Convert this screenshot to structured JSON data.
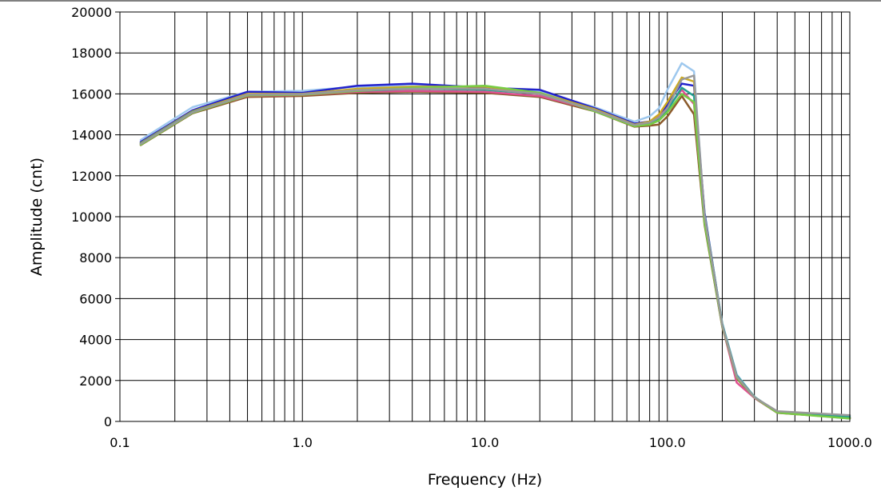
{
  "chart_data": {
    "type": "line",
    "title": "",
    "xlabel": "Frequency (Hz)",
    "ylabel": "Amplitude (cnt)",
    "x_scale": "log",
    "xlim": [
      0.1,
      1000
    ],
    "ylim": [
      0,
      20000
    ],
    "grid": true,
    "x_ticks": [
      {
        "value": 0.1,
        "label": "0.1"
      },
      {
        "value": 1,
        "label": "1.0"
      },
      {
        "value": 10,
        "label": "10.0"
      },
      {
        "value": 100,
        "label": "100.0"
      },
      {
        "value": 1000,
        "label": "1000.0"
      }
    ],
    "y_ticks": [
      {
        "value": 0,
        "label": "0"
      },
      {
        "value": 2000,
        "label": "2000"
      },
      {
        "value": 4000,
        "label": "4000"
      },
      {
        "value": 6000,
        "label": "6000"
      },
      {
        "value": 8000,
        "label": "8000"
      },
      {
        "value": 10000,
        "label": "10000"
      },
      {
        "value": 12000,
        "label": "12000"
      },
      {
        "value": 14000,
        "label": "14000"
      },
      {
        "value": 16000,
        "label": "16000"
      },
      {
        "value": 18000,
        "label": "18000"
      },
      {
        "value": 20000,
        "label": "20000"
      }
    ],
    "x": [
      0.13,
      0.25,
      0.5,
      1,
      2,
      4,
      10,
      20,
      40,
      66,
      80,
      90,
      100,
      120,
      140,
      160,
      200,
      240,
      300,
      400,
      1000
    ],
    "series": [
      {
        "color": "#9ec8ee",
        "values": [
          13750,
          15350,
          16100,
          16150,
          16350,
          16400,
          16300,
          16100,
          15350,
          14650,
          14900,
          15300,
          16200,
          17500,
          17100,
          10000,
          4800,
          2300,
          1200,
          450,
          200
        ]
      },
      {
        "color": "#2222cc",
        "values": [
          13650,
          15200,
          16100,
          16050,
          16400,
          16500,
          16300,
          16200,
          15300,
          14550,
          14650,
          14850,
          15500,
          16500,
          16400,
          10200,
          4700,
          2200,
          1150,
          450,
          150
        ]
      },
      {
        "color": "#8b5a2b",
        "values": [
          13500,
          15050,
          15850,
          15900,
          16050,
          16100,
          16050,
          15850,
          15150,
          14400,
          14450,
          14500,
          14900,
          15900,
          15000,
          9600,
          4600,
          2100,
          1150,
          420,
          160
        ]
      },
      {
        "color": "#e05090",
        "values": [
          13550,
          15100,
          15900,
          15950,
          16100,
          16150,
          16100,
          15900,
          15200,
          14450,
          14600,
          14900,
          15300,
          16200,
          15500,
          9800,
          4650,
          1900,
          1150,
          430,
          170
        ]
      },
      {
        "color": "#ccaa22",
        "values": [
          13600,
          15150,
          16000,
          16000,
          16250,
          16350,
          16350,
          16050,
          15250,
          14500,
          14650,
          15000,
          15600,
          16800,
          16600,
          9900,
          4700,
          2200,
          1180,
          440,
          180
        ]
      },
      {
        "color": "#22a090",
        "values": [
          13580,
          15120,
          15950,
          15980,
          16150,
          16250,
          16200,
          16000,
          15200,
          14450,
          14550,
          14800,
          15200,
          16300,
          15900,
          10100,
          4750,
          2250,
          1200,
          450,
          230
        ]
      },
      {
        "color": "#77cc44",
        "values": [
          13520,
          15080,
          15920,
          15960,
          16150,
          16300,
          16400,
          16050,
          15150,
          14420,
          14500,
          14700,
          15100,
          16000,
          15600,
          9700,
          4650,
          2150,
          1170,
          430,
          140
        ]
      },
      {
        "color": "#999999",
        "values": [
          13560,
          15100,
          15960,
          15990,
          16180,
          16250,
          16250,
          16000,
          15200,
          14480,
          14600,
          14850,
          15300,
          16700,
          16900,
          10050,
          4700,
          2200,
          1180,
          500,
          300
        ]
      }
    ]
  }
}
